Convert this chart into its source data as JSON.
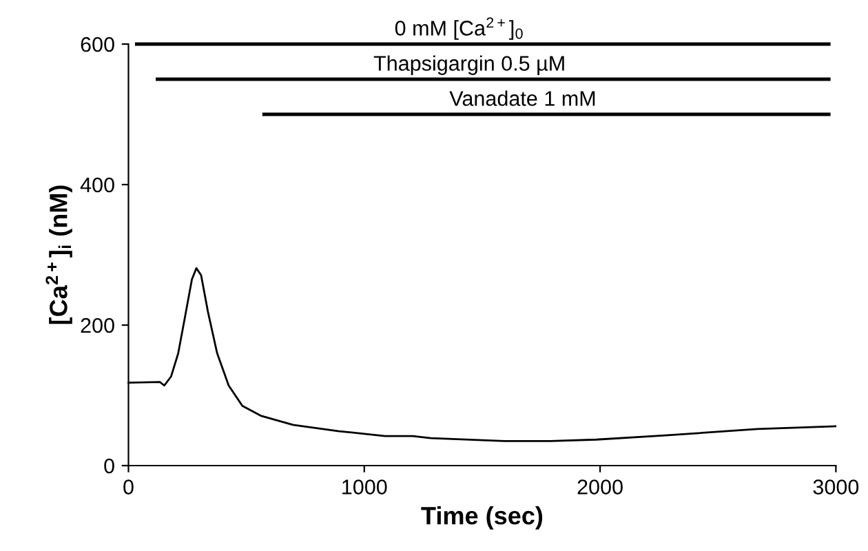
{
  "chart_data": {
    "type": "line",
    "xlabel": "Time (sec)",
    "ylabel": "[Ca$^{2+}$]$_{i}$ (nM)",
    "xlim": [
      0,
      3000
    ],
    "ylim": [
      0,
      600
    ],
    "xticks": [
      0,
      1000,
      2000,
      3000
    ],
    "yticks": [
      0,
      200,
      400,
      600
    ],
    "grid": false,
    "legend": false,
    "marker": "none",
    "line_style": "solid",
    "series": [
      {
        "color": "#000000",
        "x": [
          0,
          133,
          152,
          181,
          211,
          240,
          269,
          288,
          308,
          337,
          376,
          425,
          483,
          561,
          698,
          893,
          1088,
          1205,
          1282,
          1595,
          1789,
          1984,
          2277,
          2667,
          2998
        ],
        "values": [
          118,
          119,
          114,
          127,
          160,
          212,
          265,
          281,
          271,
          219,
          160,
          114,
          85,
          71,
          58,
          49,
          42,
          42,
          39,
          35,
          35,
          37,
          43,
          52,
          56
        ]
      },
      {
        "name": "0 mM [Ca$^{2+}$]$_{0}$",
        "color": "#000000",
        "x": [
          35,
          2970
        ],
        "values": [
          600,
          600
        ]
      },
      {
        "name": "Thapsigargin 0.5 µM",
        "color": "#000000",
        "x": [
          123,
          2970
        ],
        "values": [
          550,
          550
        ]
      },
      {
        "name": "Vanadate 1 mM",
        "color": "#000000",
        "x": [
          575,
          2970
        ],
        "values": [
          500,
          500
        ]
      }
    ]
  }
}
